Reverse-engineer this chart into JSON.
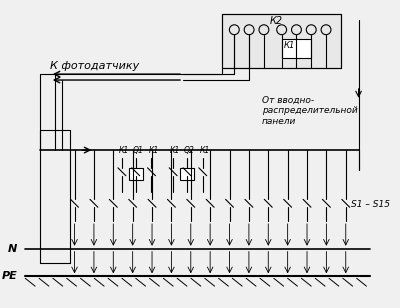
{
  "bg_color": "#f0f0f0",
  "line_color": "#000000",
  "text_color": "#000000",
  "title": "",
  "label_fotodatchik": "К фотодатчику",
  "label_ot_vvodno": "От вводно-\nраспределительной\nпанели",
  "label_k2": "К2",
  "label_k1_relay": "К1",
  "label_n": "N",
  "label_pe": "PE",
  "label_s1s15": "S1 – S15",
  "label_k1_1": "К1",
  "label_q1": "Q1",
  "label_k1_2": "К1",
  "label_k1_3": "К1",
  "label_q2": "Q2",
  "label_k1_4": "К1",
  "figsize": [
    4.0,
    3.08
  ],
  "dpi": 100
}
